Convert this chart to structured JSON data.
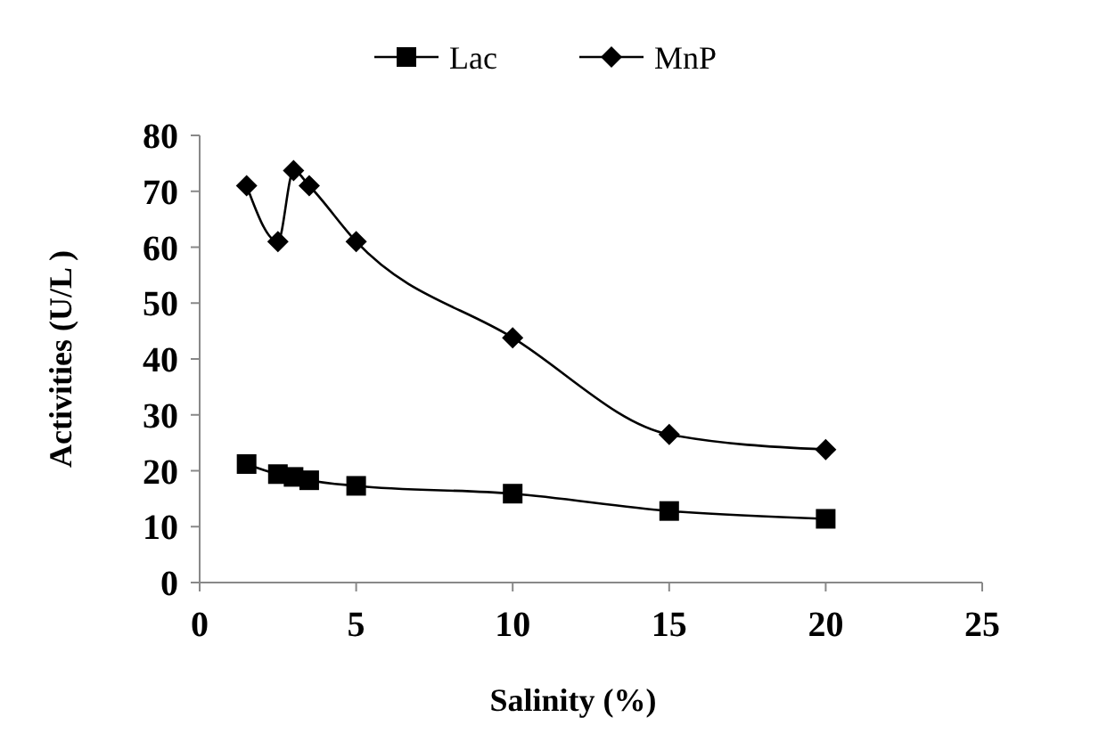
{
  "chart_data": {
    "type": "line",
    "xlabel": "Salinity (%)",
    "ylabel": "Activities (U/L )",
    "x": [
      1.5,
      2.5,
      3,
      3.5,
      5,
      10,
      15,
      20
    ],
    "series": [
      {
        "name": "Lac",
        "color": "#000000",
        "marker": "square",
        "values": [
          21.2,
          19.4,
          18.9,
          18.3,
          17.3,
          15.9,
          12.8,
          11.4
        ]
      },
      {
        "name": "MnP",
        "color": "#000000",
        "marker": "diamond",
        "values": [
          71,
          61,
          73.7,
          71,
          61,
          43.8,
          26.5,
          23.8
        ]
      }
    ],
    "xlim": [
      0,
      25
    ],
    "xticks": [
      0,
      5,
      10,
      15,
      20,
      25
    ],
    "ylim": [
      0,
      80
    ],
    "yticks": [
      0,
      10,
      20,
      30,
      40,
      50,
      60,
      70,
      80
    ],
    "grid": false,
    "legend": "top",
    "line_style": "solid"
  }
}
